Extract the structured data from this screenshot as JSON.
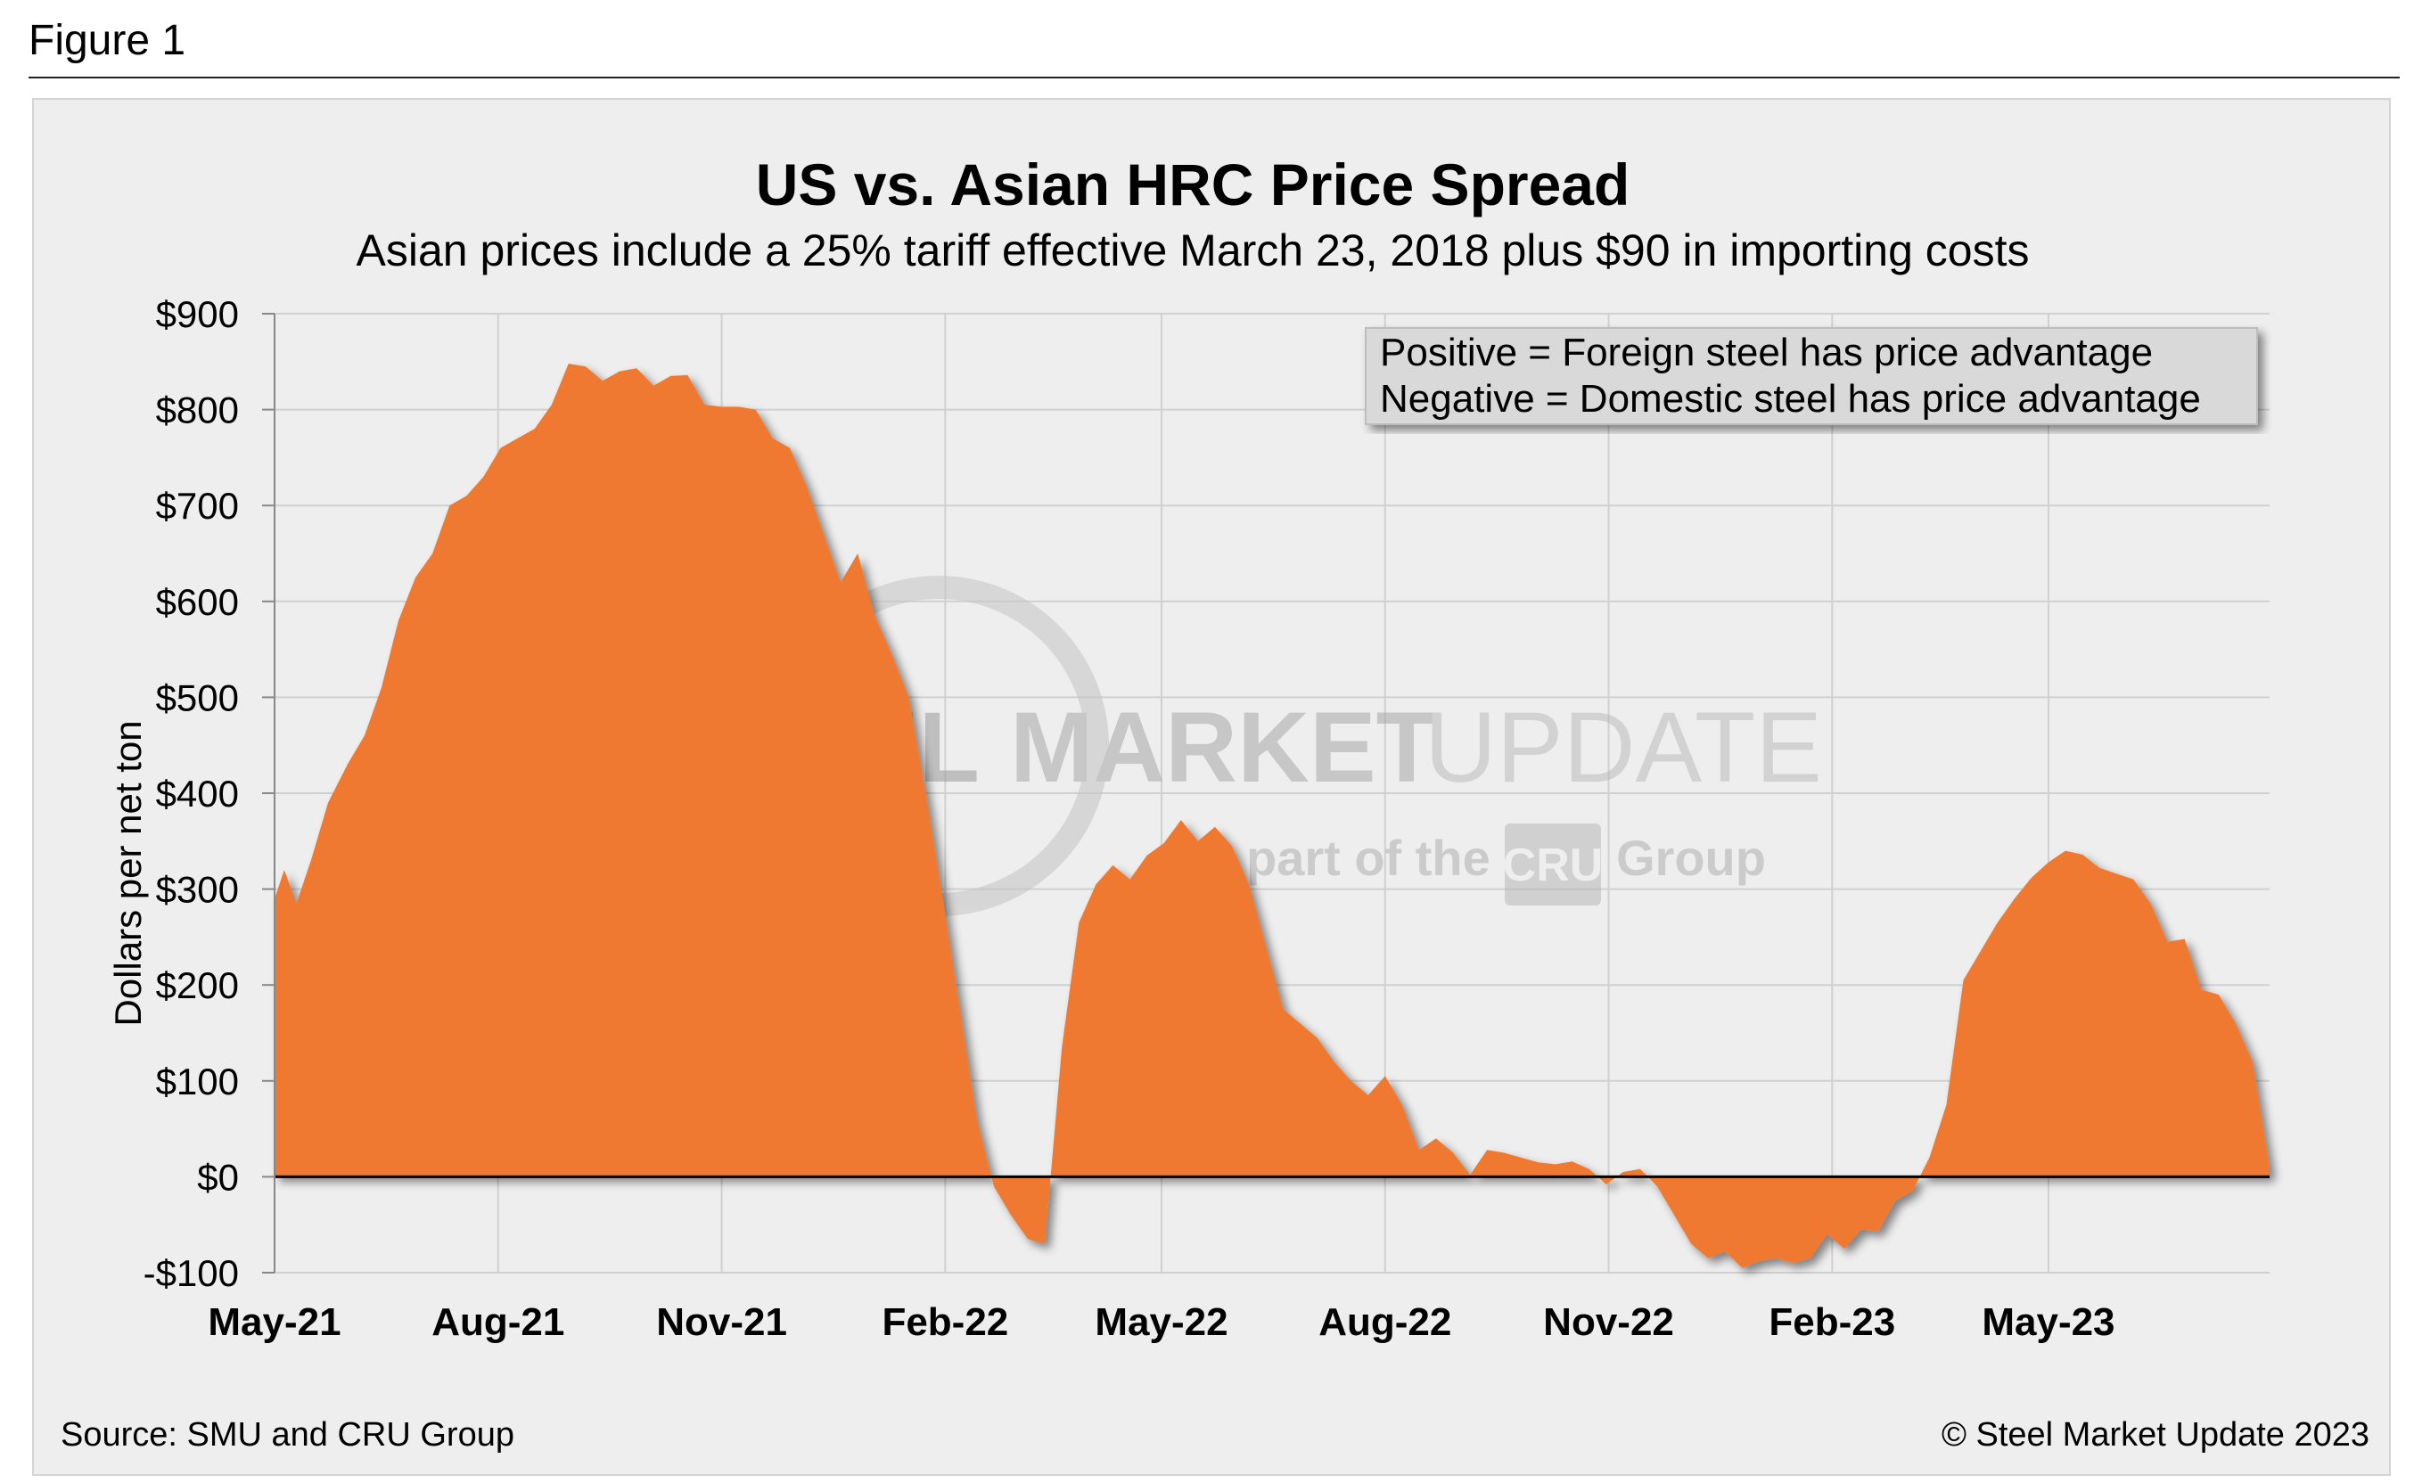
{
  "figure_label": "Figure 1",
  "source": "Source: SMU and CRU Group",
  "copyright": "© Steel Market Update 2023",
  "legend": {
    "line1": "Positive = Foreign steel has price advantage",
    "line2": "Negative = Domestic steel has price advantage"
  },
  "watermark": {
    "word1": "STEEL",
    "word2": "MARKET",
    "word3": "UPDATE",
    "tag_pre": "part of the",
    "tag_logo": "CRU",
    "tag_post": "Group"
  },
  "colors": {
    "area": "#f07930",
    "panel": "#eeeeee",
    "grid": "#d0d0d0"
  },
  "chart_data": {
    "type": "area",
    "title": "US vs. Asian HRC Price Spread",
    "subtitle": "Asian prices include a 25% tariff effective March 23, 2018 plus $90 in importing costs",
    "ylabel": "Dollars per net ton",
    "xlabel": "",
    "ylim": [
      -100,
      900
    ],
    "yticks": [
      -100,
      0,
      100,
      200,
      300,
      400,
      500,
      600,
      700,
      800,
      900
    ],
    "ytick_labels": [
      "-$100",
      "$0",
      "$100",
      "$200",
      "$300",
      "$400",
      "$500",
      "$600",
      "$700",
      "$800",
      "$900"
    ],
    "xtick_labels": [
      "May-21",
      "Aug-21",
      "Nov-21",
      "Feb-22",
      "May-22",
      "Aug-22",
      "Nov-22",
      "Feb-23",
      "May-23"
    ],
    "x_range": [
      "2021-05-01",
      "2023-07-31"
    ],
    "grid": true,
    "series": [
      {
        "values": [
          [
            "2021-05-01",
            290
          ],
          [
            "2021-05-05",
            320
          ],
          [
            "2021-05-10",
            285
          ],
          [
            "2021-05-16",
            330
          ],
          [
            "2021-05-23",
            390
          ],
          [
            "2021-05-31",
            430
          ],
          [
            "2021-06-07",
            460
          ],
          [
            "2021-06-14",
            510
          ],
          [
            "2021-06-21",
            580
          ],
          [
            "2021-06-28",
            625
          ],
          [
            "2021-07-05",
            650
          ],
          [
            "2021-07-12",
            700
          ],
          [
            "2021-07-19",
            710
          ],
          [
            "2021-07-26",
            730
          ],
          [
            "2021-08-02",
            760
          ],
          [
            "2021-08-09",
            770
          ],
          [
            "2021-08-16",
            780
          ],
          [
            "2021-08-23",
            805
          ],
          [
            "2021-08-30",
            848
          ],
          [
            "2021-09-06",
            845
          ],
          [
            "2021-09-13",
            830
          ],
          [
            "2021-09-20",
            840
          ],
          [
            "2021-09-27",
            843
          ],
          [
            "2021-10-04",
            825
          ],
          [
            "2021-10-11",
            835
          ],
          [
            "2021-10-18",
            836
          ],
          [
            "2021-10-25",
            805
          ],
          [
            "2021-11-01",
            803
          ],
          [
            "2021-11-08",
            803
          ],
          [
            "2021-11-15",
            800
          ],
          [
            "2021-11-22",
            770
          ],
          [
            "2021-11-29",
            760
          ],
          [
            "2021-12-06",
            720
          ],
          [
            "2021-12-13",
            670
          ],
          [
            "2021-12-20",
            620
          ],
          [
            "2021-12-27",
            650
          ],
          [
            "2022-01-03",
            585
          ],
          [
            "2022-01-10",
            545
          ],
          [
            "2022-01-17",
            500
          ],
          [
            "2022-01-24",
            400
          ],
          [
            "2022-01-31",
            290
          ],
          [
            "2022-02-07",
            175
          ],
          [
            "2022-02-14",
            60
          ],
          [
            "2022-02-21",
            -10
          ],
          [
            "2022-02-28",
            -40
          ],
          [
            "2022-03-07",
            -65
          ],
          [
            "2022-03-14",
            -70
          ],
          [
            "2022-03-21",
            135
          ],
          [
            "2022-03-28",
            265
          ],
          [
            "2022-04-04",
            305
          ],
          [
            "2022-04-11",
            325
          ],
          [
            "2022-04-18",
            310
          ],
          [
            "2022-04-25",
            335
          ],
          [
            "2022-05-02",
            348
          ],
          [
            "2022-05-09",
            372
          ],
          [
            "2022-05-16",
            350
          ],
          [
            "2022-05-23",
            365
          ],
          [
            "2022-05-30",
            345
          ],
          [
            "2022-06-06",
            305
          ],
          [
            "2022-06-13",
            240
          ],
          [
            "2022-06-20",
            175
          ],
          [
            "2022-06-27",
            160
          ],
          [
            "2022-07-04",
            145
          ],
          [
            "2022-07-11",
            120
          ],
          [
            "2022-07-18",
            100
          ],
          [
            "2022-07-25",
            85
          ],
          [
            "2022-08-01",
            105
          ],
          [
            "2022-08-08",
            75
          ],
          [
            "2022-08-15",
            28
          ],
          [
            "2022-08-22",
            40
          ],
          [
            "2022-08-29",
            25
          ],
          [
            "2022-09-05",
            2
          ],
          [
            "2022-09-12",
            28
          ],
          [
            "2022-09-19",
            25
          ],
          [
            "2022-09-26",
            20
          ],
          [
            "2022-10-03",
            15
          ],
          [
            "2022-10-10",
            13
          ],
          [
            "2022-10-17",
            16
          ],
          [
            "2022-10-24",
            8
          ],
          [
            "2022-10-31",
            -8
          ],
          [
            "2022-11-07",
            5
          ],
          [
            "2022-11-14",
            8
          ],
          [
            "2022-11-21",
            -10
          ],
          [
            "2022-11-28",
            -40
          ],
          [
            "2022-12-05",
            -70
          ],
          [
            "2022-12-12",
            -85
          ],
          [
            "2022-12-19",
            -78
          ],
          [
            "2022-12-26",
            -95
          ],
          [
            "2023-01-02",
            -88
          ],
          [
            "2023-01-09",
            -85
          ],
          [
            "2023-01-16",
            -90
          ],
          [
            "2023-01-23",
            -85
          ],
          [
            "2023-01-30",
            -60
          ],
          [
            "2023-02-06",
            -75
          ],
          [
            "2023-02-13",
            -55
          ],
          [
            "2023-02-20",
            -57
          ],
          [
            "2023-02-27",
            -25
          ],
          [
            "2023-03-06",
            -15
          ],
          [
            "2023-03-13",
            20
          ],
          [
            "2023-03-20",
            75
          ],
          [
            "2023-03-27",
            205
          ],
          [
            "2023-04-03",
            235
          ],
          [
            "2023-04-10",
            265
          ],
          [
            "2023-04-17",
            290
          ],
          [
            "2023-04-24",
            312
          ],
          [
            "2023-05-01",
            328
          ],
          [
            "2023-05-08",
            340
          ],
          [
            "2023-05-15",
            336
          ],
          [
            "2023-05-22",
            322
          ],
          [
            "2023-05-29",
            316
          ],
          [
            "2023-06-05",
            310
          ],
          [
            "2023-06-12",
            285
          ],
          [
            "2023-06-19",
            245
          ],
          [
            "2023-06-26",
            248
          ],
          [
            "2023-07-03",
            195
          ],
          [
            "2023-07-10",
            190
          ],
          [
            "2023-07-17",
            160
          ],
          [
            "2023-07-24",
            120
          ],
          [
            "2023-07-31",
            10
          ]
        ]
      }
    ]
  }
}
